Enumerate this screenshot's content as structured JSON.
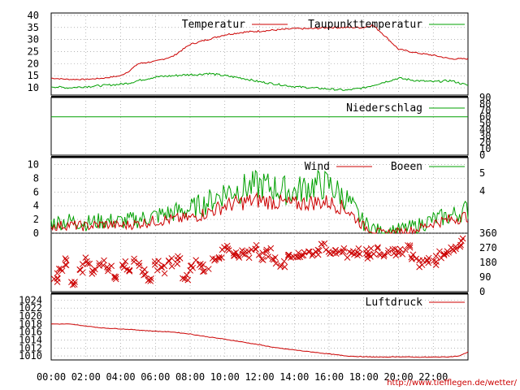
{
  "footer_url": "http://www.tiefflegen.de/wetter/",
  "colors": {
    "red": "#cc0000",
    "green": "#00a000",
    "grid": "#888888",
    "axis": "#000000"
  },
  "x_ticks": [
    "00:00",
    "02:00",
    "04:00",
    "06:00",
    "08:00",
    "10:00",
    "12:00",
    "14:00",
    "16:00",
    "18:00",
    "20:00",
    "22:00"
  ],
  "chart_data": [
    {
      "type": "line",
      "ylim": [
        7,
        41
      ],
      "yticks": [
        "10",
        "15",
        "20",
        "25",
        "30",
        "35",
        "40"
      ],
      "legend_placement": "top-right",
      "x": [
        0,
        1,
        2,
        3,
        4,
        4.5,
        5,
        6,
        7,
        8,
        8.5,
        9,
        10,
        11,
        12,
        13,
        14,
        15,
        16,
        17,
        18,
        18.5,
        19,
        20,
        21,
        22,
        23,
        24
      ],
      "series": [
        {
          "name": "Temperatur",
          "color": "#cc0000",
          "values": [
            14,
            13.5,
            13.5,
            14,
            15,
            17,
            20,
            21,
            23,
            28,
            29,
            30,
            32,
            33,
            33.5,
            34,
            34.5,
            34.5,
            35,
            35,
            35,
            36,
            33,
            26,
            24.5,
            23.5,
            22,
            22
          ]
        },
        {
          "name": "Taupunkttemperatur",
          "color": "#00a000",
          "values": [
            10.5,
            10,
            10.5,
            11,
            11.5,
            12,
            13,
            14.5,
            15,
            15.5,
            15.5,
            16,
            15,
            14,
            12.5,
            11.5,
            10.5,
            10,
            9.5,
            9,
            10,
            11,
            12,
            14,
            13,
            12.5,
            13,
            11
          ]
        }
      ]
    },
    {
      "type": "line",
      "ylim": [
        0,
        90
      ],
      "yticks_right": [
        "0",
        "10",
        "20",
        "30",
        "40",
        "50",
        "60",
        "70",
        "80",
        "90"
      ],
      "legend_placement": "top-right",
      "x": [
        0,
        24
      ],
      "series": [
        {
          "name": "Niederschlag",
          "color": "#00a000",
          "values": [
            60,
            60
          ]
        }
      ]
    },
    {
      "type": "line",
      "ylim": [
        0,
        11
      ],
      "yticks": [
        "0",
        "2",
        "4",
        "6",
        "8",
        "10"
      ],
      "yticks_right": [
        "4",
        "5"
      ],
      "legend_placement": "top-right",
      "x": [
        0,
        1,
        2,
        3,
        4,
        5,
        6,
        7,
        8,
        9,
        10,
        11,
        12,
        13,
        14,
        15,
        16,
        17,
        18,
        19,
        20,
        21,
        22,
        23,
        24
      ],
      "series": [
        {
          "name": "Wind",
          "color": "#cc0000",
          "values": [
            1,
            1.2,
            1,
            1.3,
            1.1,
            1.4,
            1.8,
            2,
            2.2,
            3,
            4,
            4.5,
            4.8,
            4.5,
            4.2,
            4.5,
            4.5,
            3.5,
            1,
            0,
            0.2,
            0.5,
            1.5,
            2,
            2.5
          ]
        },
        {
          "name": "Boeen",
          "color": "#00a000",
          "values": [
            1.5,
            1.8,
            1.5,
            1.8,
            1.7,
            2,
            2.5,
            3,
            3.5,
            4.5,
            6,
            6.5,
            7,
            6.5,
            6,
            7,
            7,
            5,
            1.5,
            0.2,
            0.5,
            1,
            2,
            2.5,
            3.5
          ]
        }
      ]
    },
    {
      "type": "scatter",
      "ylim": [
        0,
        360
      ],
      "yticks_right": [
        "0",
        "90",
        "180",
        "270",
        "360"
      ],
      "x": [
        0.2,
        0.5,
        0.9,
        1.3,
        1.7,
        2.1,
        2.5,
        2.9,
        3.3,
        3.7,
        4.1,
        4.5,
        4.9,
        5.3,
        5.7,
        6.1,
        6.5,
        6.9,
        7.3,
        7.7,
        8.1,
        8.5,
        8.9,
        9.3,
        9.7,
        10.1,
        10.5,
        10.9,
        11.3,
        11.7,
        12.1,
        12.5,
        12.9,
        13.3,
        13.7,
        14.1,
        14.5,
        14.9,
        15.3,
        15.7,
        16.1,
        16.5,
        16.9,
        17.3,
        17.7,
        18.1,
        18.5,
        18.9,
        19.3,
        19.7,
        20.1,
        20.5,
        20.9,
        21.3,
        21.7,
        22.1,
        22.5,
        22.9,
        23.3,
        23.7
      ],
      "values": [
        90,
        140,
        180,
        60,
        140,
        180,
        120,
        180,
        150,
        100,
        160,
        140,
        180,
        120,
        90,
        160,
        140,
        180,
        200,
        100,
        160,
        180,
        150,
        200,
        230,
        260,
        220,
        240,
        230,
        270,
        210,
        240,
        200,
        180,
        210,
        240,
        220,
        250,
        230,
        270,
        220,
        260,
        240,
        220,
        250,
        230,
        240,
        250,
        230,
        250,
        240,
        260,
        230,
        180,
        200,
        190,
        220,
        260,
        280,
        300
      ],
      "color": "#cc0000"
    },
    {
      "type": "line",
      "ylim": [
        1009,
        1025.5
      ],
      "yticks": [
        "1010",
        "1012",
        "1014",
        "1016",
        "1018",
        "1020",
        "1022",
        "1024"
      ],
      "legend_placement": "top-right",
      "x": [
        0,
        1,
        2,
        3,
        4,
        5,
        6,
        7,
        8,
        9,
        10,
        11,
        12,
        13,
        14,
        15,
        16,
        17,
        18,
        19,
        20,
        21,
        22,
        23,
        23.5,
        24
      ],
      "series": [
        {
          "name": "Luftdruck",
          "color": "#cc0000",
          "values": [
            1018,
            1018,
            1017.5,
            1017,
            1016.8,
            1016.5,
            1016.2,
            1016,
            1015.5,
            1014.8,
            1014.2,
            1013.5,
            1012.8,
            1012,
            1011.5,
            1011,
            1010.5,
            1010,
            1009.8,
            1009.7,
            1009.8,
            1009.7,
            1009.7,
            1009.8,
            1010,
            1011
          ]
        }
      ]
    }
  ]
}
